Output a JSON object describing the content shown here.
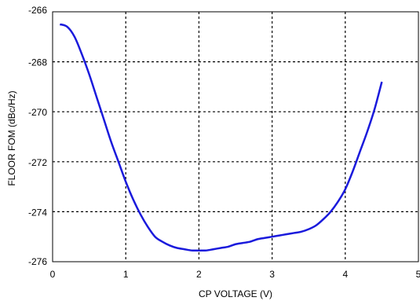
{
  "chart_data": {
    "type": "line",
    "title": "",
    "xlabel": "CP VOLTAGE (V)",
    "ylabel": "FLOOR FOM (dBc/Hz)",
    "xlim": [
      0,
      5
    ],
    "ylim": [
      -276,
      -266
    ],
    "x_ticks": [
      "0",
      "1",
      "2",
      "3",
      "4",
      "5"
    ],
    "y_ticks": [
      "-266",
      "-268",
      "-270",
      "-272",
      "-274",
      "-276"
    ],
    "grid": true,
    "legend": "none",
    "series": [
      {
        "color": "#1a1adc",
        "x": [
          0.1,
          0.2,
          0.3,
          0.4,
          0.5,
          0.6,
          0.7,
          0.8,
          0.9,
          1.0,
          1.1,
          1.2,
          1.3,
          1.4,
          1.5,
          1.6,
          1.7,
          1.8,
          1.9,
          2.0,
          2.1,
          2.2,
          2.3,
          2.4,
          2.5,
          2.6,
          2.7,
          2.8,
          2.9,
          3.0,
          3.1,
          3.2,
          3.3,
          3.4,
          3.5,
          3.6,
          3.7,
          3.8,
          3.9,
          4.0,
          4.1,
          4.2,
          4.3,
          4.4,
          4.5
        ],
        "y": [
          -266.5,
          -266.6,
          -267.0,
          -267.7,
          -268.5,
          -269.4,
          -270.3,
          -271.2,
          -272.0,
          -272.8,
          -273.5,
          -274.1,
          -274.6,
          -275.0,
          -275.2,
          -275.35,
          -275.45,
          -275.5,
          -275.55,
          -275.55,
          -275.55,
          -275.5,
          -275.45,
          -275.4,
          -275.3,
          -275.25,
          -275.2,
          -275.1,
          -275.05,
          -275.0,
          -274.95,
          -274.9,
          -274.85,
          -274.8,
          -274.7,
          -274.55,
          -274.3,
          -274.0,
          -273.6,
          -273.1,
          -272.4,
          -271.6,
          -270.8,
          -269.9,
          -268.8
        ]
      }
    ]
  }
}
